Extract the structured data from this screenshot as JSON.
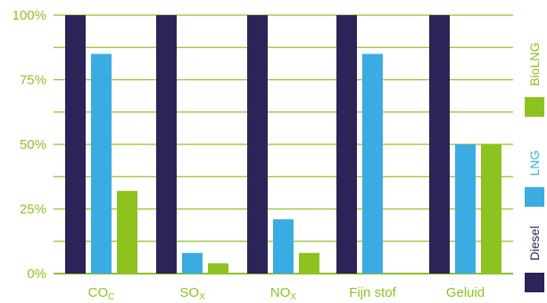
{
  "chart_data": {
    "type": "bar",
    "title": "",
    "xlabel": "",
    "ylabel": "",
    "ylim": [
      0,
      100
    ],
    "y_ticks": [
      {
        "value": 0,
        "label": "0%"
      },
      {
        "value": 25,
        "label": "25%"
      },
      {
        "value": 50,
        "label": "50%"
      },
      {
        "value": 75,
        "label": "75%"
      },
      {
        "value": 100,
        "label": "100%"
      }
    ],
    "categories": [
      {
        "main": "CO",
        "sub": "C"
      },
      {
        "main": "SO",
        "sub": "X"
      },
      {
        "main": "NO",
        "sub": "X"
      },
      {
        "main": "Fijn stof",
        "sub": ""
      },
      {
        "main": "Geluid",
        "sub": ""
      }
    ],
    "series": [
      {
        "name": "Diesel",
        "color": "#2a2458",
        "values": [
          100,
          100,
          100,
          100,
          100
        ]
      },
      {
        "name": "LNG",
        "color": "#3aace2",
        "values": [
          85,
          8,
          21,
          85,
          50
        ]
      },
      {
        "name": "BioLNG",
        "color": "#8dc21f",
        "values": [
          32,
          4,
          8,
          0,
          50
        ]
      }
    ],
    "grid": "horizontal",
    "legend_position": "right, vertical"
  }
}
